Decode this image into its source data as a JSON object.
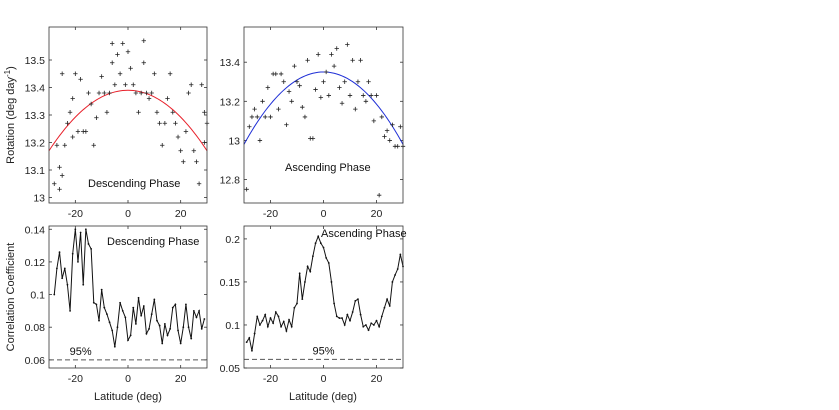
{
  "chart_data": [
    {
      "type": "scatter",
      "id": "top-left",
      "annotation": "Descending Phase",
      "ylabel": "Rotation (deg day",
      "ylabel_sup": "-1",
      "ylabel_close": ")",
      "xlim": [
        -30,
        30
      ],
      "ylim": [
        12.98,
        13.62
      ],
      "xticks": [
        -20,
        0,
        20
      ],
      "yticks": [
        13.0,
        13.1,
        13.2,
        13.3,
        13.4,
        13.5
      ],
      "ytick_labels": [
        "13",
        "13.1",
        "13.2",
        "13.3",
        "13.4",
        "13.5"
      ],
      "fit": {
        "type": "quadratic",
        "peak_x": 0,
        "peak_y": 13.39,
        "y_at_edge": 13.17,
        "color": "#e8202a"
      },
      "points": [
        [
          -28,
          13.05
        ],
        [
          -27,
          13.19
        ],
        [
          -26,
          13.11
        ],
        [
          -26,
          13.03
        ],
        [
          -25,
          13.08
        ],
        [
          -25,
          13.45
        ],
        [
          -24,
          13.19
        ],
        [
          -23,
          13.27
        ],
        [
          -22,
          13.31
        ],
        [
          -21,
          13.22
        ],
        [
          -21,
          13.36
        ],
        [
          -20,
          13.45
        ],
        [
          -19,
          13.24
        ],
        [
          -18,
          13.43
        ],
        [
          -17,
          13.24
        ],
        [
          -16,
          13.24
        ],
        [
          -15,
          13.38
        ],
        [
          -14,
          13.34
        ],
        [
          -13,
          13.19
        ],
        [
          -12,
          13.29
        ],
        [
          -11,
          13.38
        ],
        [
          -10,
          13.44
        ],
        [
          -9,
          13.38
        ],
        [
          -8,
          13.31
        ],
        [
          -7,
          13.38
        ],
        [
          -6,
          13.56
        ],
        [
          -6,
          13.49
        ],
        [
          -5,
          13.41
        ],
        [
          -4,
          13.52
        ],
        [
          -3,
          13.45
        ],
        [
          -2,
          13.56
        ],
        [
          -1,
          13.41
        ],
        [
          0,
          13.53
        ],
        [
          1,
          13.47
        ],
        [
          2,
          13.41
        ],
        [
          3,
          13.38
        ],
        [
          4,
          13.31
        ],
        [
          5,
          13.38
        ],
        [
          6,
          13.49
        ],
        [
          6,
          13.57
        ],
        [
          7,
          13.38
        ],
        [
          8,
          13.36
        ],
        [
          9,
          13.38
        ],
        [
          10,
          13.45
        ],
        [
          11,
          13.31
        ],
        [
          12,
          13.27
        ],
        [
          13,
          13.19
        ],
        [
          14,
          13.27
        ],
        [
          15,
          13.36
        ],
        [
          16,
          13.45
        ],
        [
          17,
          13.31
        ],
        [
          18,
          13.27
        ],
        [
          19,
          13.22
        ],
        [
          20,
          13.17
        ],
        [
          21,
          13.13
        ],
        [
          22,
          13.24
        ],
        [
          23,
          13.38
        ],
        [
          24,
          13.41
        ],
        [
          25,
          13.17
        ],
        [
          26,
          13.13
        ],
        [
          27,
          13.05
        ],
        [
          28,
          13.41
        ],
        [
          29,
          13.31
        ],
        [
          29,
          13.2
        ],
        [
          30,
          13.27
        ]
      ]
    },
    {
      "type": "scatter",
      "id": "top-right",
      "annotation": "Ascending Phase",
      "xlim": [
        -30,
        30
      ],
      "ylim": [
        12.68,
        13.58
      ],
      "xticks": [
        -20,
        0,
        20
      ],
      "yticks": [
        12.8,
        13.0,
        13.2,
        13.4
      ],
      "ytick_labels": [
        "12.8",
        "13",
        "13.2",
        "13.4"
      ],
      "fit": {
        "type": "quadratic",
        "peak_x": 0,
        "peak_y": 13.35,
        "y_at_edge": 12.98,
        "color": "#1f2fd6"
      },
      "points": [
        [
          -29,
          12.75
        ],
        [
          -28,
          13.07
        ],
        [
          -27,
          13.12
        ],
        [
          -26,
          13.16
        ],
        [
          -25,
          13.12
        ],
        [
          -24,
          13.0
        ],
        [
          -23,
          13.2
        ],
        [
          -22,
          13.12
        ],
        [
          -21,
          13.27
        ],
        [
          -20,
          13.12
        ],
        [
          -19,
          13.34
        ],
        [
          -18,
          13.34
        ],
        [
          -17,
          13.16
        ],
        [
          -16,
          13.34
        ],
        [
          -15,
          13.3
        ],
        [
          -14,
          13.08
        ],
        [
          -13,
          13.25
        ],
        [
          -12,
          13.2
        ],
        [
          -11,
          13.38
        ],
        [
          -10,
          13.3
        ],
        [
          -9,
          13.28
        ],
        [
          -8,
          13.17
        ],
        [
          -7,
          13.12
        ],
        [
          -6,
          13.41
        ],
        [
          -5,
          13.01
        ],
        [
          -4,
          13.01
        ],
        [
          -3,
          13.26
        ],
        [
          -2,
          13.44
        ],
        [
          -1,
          13.22
        ],
        [
          0,
          13.3
        ],
        [
          1,
          13.35
        ],
        [
          2,
          13.23
        ],
        [
          3,
          13.44
        ],
        [
          4,
          13.38
        ],
        [
          5,
          13.47
        ],
        [
          6,
          13.27
        ],
        [
          7,
          13.19
        ],
        [
          8,
          13.3
        ],
        [
          9,
          13.49
        ],
        [
          10,
          13.23
        ],
        [
          11,
          13.41
        ],
        [
          12,
          13.16
        ],
        [
          13,
          13.3
        ],
        [
          14,
          13.41
        ],
        [
          15,
          13.23
        ],
        [
          16,
          13.2
        ],
        [
          17,
          13.3
        ],
        [
          18,
          13.23
        ],
        [
          19,
          13.1
        ],
        [
          20,
          13.23
        ],
        [
          21,
          12.72
        ],
        [
          22,
          13.12
        ],
        [
          23,
          13.02
        ],
        [
          24,
          13.05
        ],
        [
          25,
          13.0
        ],
        [
          26,
          13.08
        ],
        [
          27,
          12.97
        ],
        [
          28,
          12.97
        ],
        [
          29,
          13.07
        ],
        [
          30,
          12.97
        ]
      ]
    },
    {
      "type": "line",
      "id": "bottom-left",
      "annotation": "Descending Phase",
      "ylabel": "Correlation Coefficient",
      "xlabel": "Latitude (deg)",
      "xlim": [
        -30,
        30
      ],
      "ylim": [
        0.055,
        0.142
      ],
      "xticks": [
        -20,
        0,
        20
      ],
      "yticks": [
        0.06,
        0.08,
        0.1,
        0.12,
        0.14
      ],
      "ytick_labels": [
        "0.06",
        "0.08",
        "0.1",
        "0.12",
        "0.14"
      ],
      "threshold": {
        "value": 0.06,
        "label": "95%",
        "label_x": -18
      },
      "x": [
        -28,
        -27,
        -26,
        -25,
        -24,
        -23,
        -22,
        -21,
        -20,
        -19,
        -18,
        -17,
        -16,
        -15,
        -14,
        -13,
        -12,
        -11,
        -10,
        -9,
        -8,
        -7,
        -6,
        -5,
        -4,
        -3,
        -2,
        -1,
        0,
        1,
        2,
        3,
        4,
        5,
        6,
        7,
        8,
        9,
        10,
        11,
        12,
        13,
        14,
        15,
        16,
        17,
        18,
        19,
        20,
        21,
        22,
        23,
        24,
        25,
        26,
        27,
        28,
        29
      ],
      "y": [
        0.1,
        0.116,
        0.126,
        0.11,
        0.116,
        0.106,
        0.09,
        0.125,
        0.14,
        0.12,
        0.138,
        0.106,
        0.14,
        0.131,
        0.128,
        0.095,
        0.094,
        0.084,
        0.103,
        0.092,
        0.088,
        0.083,
        0.078,
        0.068,
        0.08,
        0.095,
        0.09,
        0.086,
        0.072,
        0.075,
        0.092,
        0.082,
        0.098,
        0.087,
        0.093,
        0.076,
        0.079,
        0.088,
        0.097,
        0.084,
        0.081,
        0.07,
        0.082,
        0.075,
        0.079,
        0.092,
        0.094,
        0.078,
        0.07,
        0.08,
        0.094,
        0.08,
        0.073,
        0.09,
        0.086,
        0.09,
        0.079,
        0.085
      ]
    },
    {
      "type": "line",
      "id": "bottom-right",
      "annotation": "Ascending Phase",
      "xlabel": "Latitude (deg)",
      "xlim": [
        -30,
        30
      ],
      "ylim": [
        0.05,
        0.215
      ],
      "xticks": [
        -20,
        0,
        20
      ],
      "yticks": [
        0.05,
        0.1,
        0.15,
        0.2
      ],
      "ytick_labels": [
        "0.05",
        "0.1",
        "0.15",
        "0.2"
      ],
      "threshold": {
        "value": 0.06,
        "label": "95%",
        "label_x": 0
      },
      "x": [
        -29,
        -28,
        -27,
        -26,
        -25,
        -24,
        -23,
        -22,
        -21,
        -20,
        -19,
        -18,
        -17,
        -16,
        -15,
        -14,
        -13,
        -12,
        -11,
        -10,
        -9,
        -8,
        -7,
        -6,
        -5,
        -4,
        -3,
        -2,
        -1,
        0,
        1,
        2,
        3,
        4,
        5,
        6,
        7,
        8,
        9,
        10,
        11,
        12,
        13,
        14,
        15,
        16,
        17,
        18,
        19,
        20,
        21,
        22,
        23,
        24,
        25,
        26,
        27,
        28,
        29,
        30
      ],
      "y": [
        0.08,
        0.085,
        0.07,
        0.09,
        0.11,
        0.1,
        0.105,
        0.112,
        0.098,
        0.108,
        0.102,
        0.115,
        0.11,
        0.098,
        0.104,
        0.093,
        0.106,
        0.098,
        0.12,
        0.125,
        0.16,
        0.13,
        0.15,
        0.168,
        0.162,
        0.18,
        0.195,
        0.203,
        0.195,
        0.19,
        0.178,
        0.172,
        0.15,
        0.125,
        0.11,
        0.108,
        0.108,
        0.1,
        0.112,
        0.105,
        0.115,
        0.128,
        0.13,
        0.112,
        0.098,
        0.1,
        0.094,
        0.102,
        0.1,
        0.105,
        0.098,
        0.11,
        0.12,
        0.13,
        0.122,
        0.15,
        0.158,
        0.165,
        0.182,
        0.168
      ]
    }
  ]
}
